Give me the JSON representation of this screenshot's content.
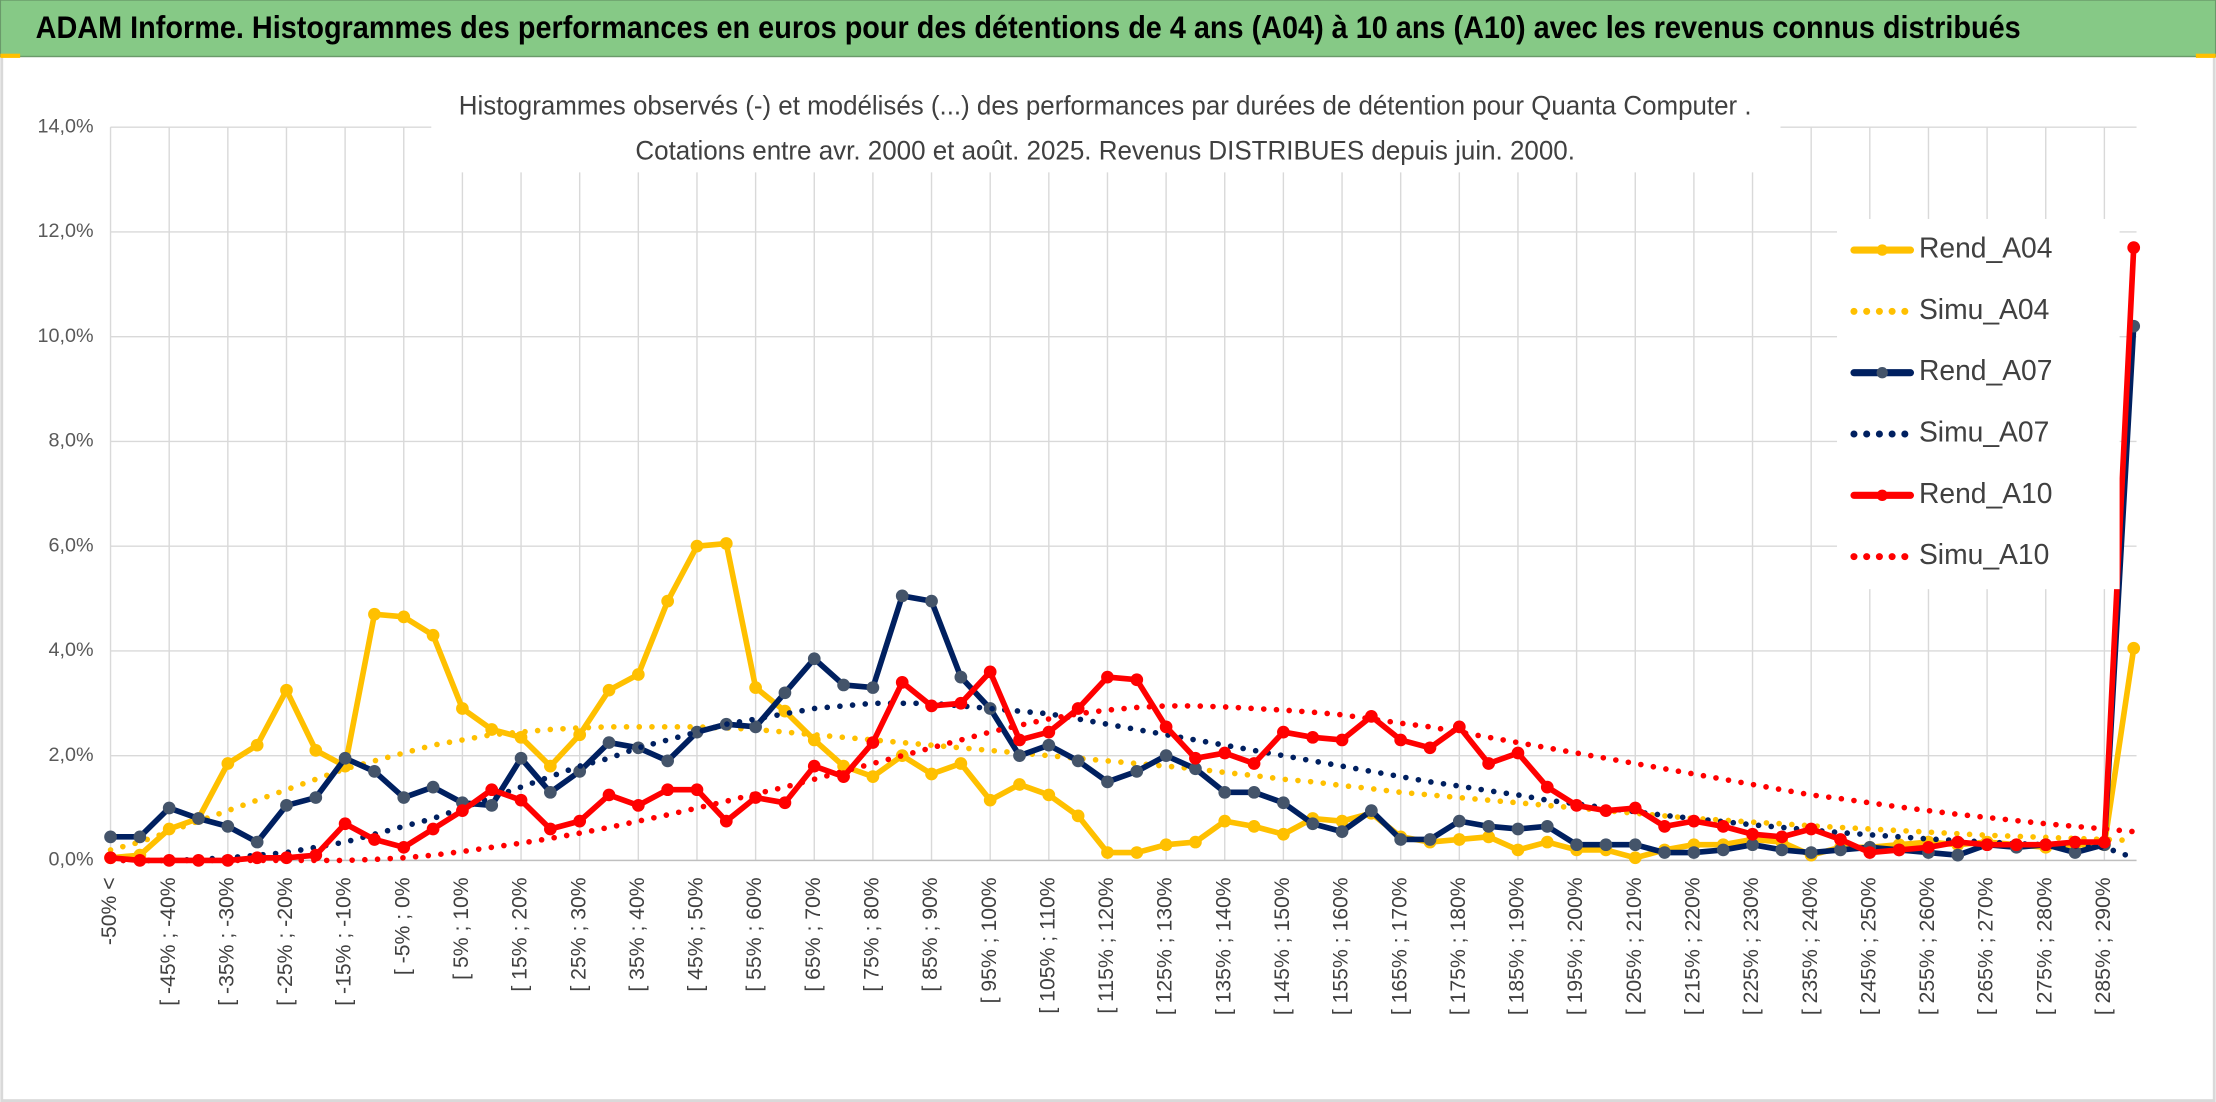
{
  "header": {
    "title": "ADAM Informe. Histogrammes des performances en euros pour des détentions de 4 ans (A04) à 10 ans (A10) avec les revenus connus distribués"
  },
  "chart_data": {
    "type": "line",
    "title": "Histogrammes observés (-) et modélisés (...) des performances par durées de détention pour Quanta Computer .",
    "subtitle": "Cotations entre avr. 2000 et août. 2025. Revenus DISTRIBUES depuis juin. 2000.",
    "categories": [
      "-50% <",
      null,
      "[ -45% ; -40%",
      null,
      "[ -35% ; -30%",
      null,
      "[ -25% ; -20%",
      null,
      "[ -15% ; -10%",
      null,
      "[ -5% ; 0%",
      null,
      "[ 5% ; 10%",
      null,
      "[ 15% ; 20%",
      null,
      "[ 25% ; 30%",
      null,
      "[ 35% ; 40%",
      null,
      "[ 45% ; 50%",
      null,
      "[ 55% ; 60%",
      null,
      "[ 65% ; 70%",
      null,
      "[ 75% ; 80%",
      null,
      "[ 85% ; 90%",
      null,
      "[ 95% ; 100%",
      null,
      "[ 105% ; 110%",
      null,
      "[ 115% ; 120%",
      null,
      "[ 125% ; 130%",
      null,
      "[ 135% ; 140%",
      null,
      "[ 145% ; 150%",
      null,
      "[ 155% ; 160%",
      null,
      "[ 165% ; 170%",
      null,
      "[ 175% ; 180%",
      null,
      "[ 185% ; 190%",
      null,
      "[ 195% ; 200%",
      null,
      "[ 205% ; 210%",
      null,
      "[ 215% ; 220%",
      null,
      "[ 225% ; 230%",
      null,
      "[ 235% ; 240%",
      null,
      "[ 245% ; 250%",
      null,
      "[ 255% ; 260%",
      null,
      "[ 265% ; 270%",
      null,
      "[ 275% ; 280%",
      null,
      "[ 285% ; 290%",
      null
    ],
    "series": [
      {
        "name": "Rend_A04",
        "color": "#FFC000",
        "line_style": "solid",
        "markers": true,
        "values": [
          0.05,
          0.1,
          0.6,
          0.8,
          1.85,
          2.2,
          3.25,
          2.1,
          1.8,
          4.7,
          4.65,
          4.3,
          2.9,
          2.5,
          2.35,
          1.8,
          2.4,
          3.25,
          3.55,
          4.95,
          6.0,
          6.05,
          3.3,
          2.85,
          2.3,
          1.8,
          1.6,
          2.0,
          1.65,
          1.85,
          1.15,
          1.45,
          1.25,
          0.85,
          0.15,
          0.15,
          0.3,
          0.35,
          0.75,
          0.65,
          0.5,
          0.8,
          0.75,
          0.9,
          0.45,
          0.35,
          0.4,
          0.45,
          0.2,
          0.35,
          0.2,
          0.2,
          0.05,
          0.2,
          0.3,
          0.3,
          0.4,
          0.35,
          0.1,
          0.25,
          0.25,
          0.3,
          0.35,
          0.3,
          0.35,
          0.3,
          0.25,
          0.3,
          0.3,
          4.05
        ]
      },
      {
        "name": "Simu_A04",
        "color": "#FFC000",
        "line_style": "dotted",
        "markers": false,
        "values": [
          0.2,
          0.35,
          0.55,
          0.75,
          0.95,
          1.15,
          1.35,
          1.55,
          1.75,
          1.9,
          2.05,
          2.2,
          2.3,
          2.4,
          2.45,
          2.5,
          2.53,
          2.55,
          2.55,
          2.55,
          2.55,
          2.53,
          2.5,
          2.45,
          2.4,
          2.35,
          2.3,
          2.25,
          2.2,
          2.15,
          2.1,
          2.05,
          2.0,
          1.95,
          1.9,
          1.85,
          1.8,
          1.75,
          1.68,
          1.62,
          1.55,
          1.5,
          1.43,
          1.37,
          1.3,
          1.25,
          1.2,
          1.15,
          1.1,
          1.05,
          1.0,
          0.95,
          0.9,
          0.85,
          0.8,
          0.77,
          0.73,
          0.7,
          0.66,
          0.63,
          0.6,
          0.57,
          0.54,
          0.51,
          0.48,
          0.46,
          0.44,
          0.42,
          0.4,
          0.38
        ]
      },
      {
        "name": "Rend_A07",
        "color": "#002060",
        "marker_color": "#44546A",
        "line_style": "solid",
        "markers": true,
        "values": [
          0.45,
          0.45,
          1.0,
          0.8,
          0.65,
          0.35,
          1.05,
          1.2,
          1.95,
          1.7,
          1.2,
          1.4,
          1.1,
          1.05,
          1.95,
          1.3,
          1.7,
          2.25,
          2.15,
          1.9,
          2.45,
          2.6,
          2.55,
          3.2,
          3.85,
          3.35,
          3.3,
          5.05,
          4.95,
          3.5,
          2.9,
          2.0,
          2.2,
          1.9,
          1.5,
          1.7,
          2.0,
          1.75,
          1.3,
          1.3,
          1.1,
          0.7,
          0.55,
          0.95,
          0.4,
          0.4,
          0.75,
          0.65,
          0.6,
          0.65,
          0.3,
          0.3,
          0.3,
          0.15,
          0.15,
          0.2,
          0.3,
          0.2,
          0.15,
          0.2,
          0.25,
          0.2,
          0.15,
          0.1,
          0.3,
          0.25,
          0.3,
          0.15,
          0.3,
          10.2
        ]
      },
      {
        "name": "Simu_A07",
        "color": "#002060",
        "line_style": "dotted",
        "markers": false,
        "values": [
          0,
          0,
          0,
          0.02,
          0.05,
          0.1,
          0.15,
          0.25,
          0.35,
          0.5,
          0.65,
          0.8,
          1.0,
          1.2,
          1.4,
          1.6,
          1.8,
          1.95,
          2.15,
          2.3,
          2.45,
          2.6,
          2.7,
          2.8,
          2.9,
          2.95,
          3.0,
          3.0,
          3.0,
          2.95,
          2.9,
          2.85,
          2.8,
          2.7,
          2.6,
          2.5,
          2.4,
          2.3,
          2.2,
          2.1,
          2.0,
          1.9,
          1.8,
          1.7,
          1.6,
          1.5,
          1.42,
          1.33,
          1.25,
          1.15,
          1.08,
          1.0,
          0.93,
          0.86,
          0.8,
          0.74,
          0.68,
          0.63,
          0.58,
          0.53,
          0.49,
          0.45,
          0.41,
          0.38,
          0.35,
          0.32,
          0.3,
          0.27,
          0.25,
          0.05
        ]
      },
      {
        "name": "Rend_A10",
        "color": "#FF0000",
        "line_style": "solid",
        "markers": true,
        "values": [
          0.05,
          0,
          0,
          0,
          0,
          0.05,
          0.05,
          0.1,
          0.7,
          0.4,
          0.25,
          0.6,
          0.95,
          1.35,
          1.15,
          0.6,
          0.75,
          1.25,
          1.05,
          1.35,
          1.35,
          0.75,
          1.2,
          1.1,
          1.8,
          1.6,
          2.25,
          3.4,
          2.95,
          3.0,
          3.6,
          2.3,
          2.45,
          2.9,
          3.5,
          3.45,
          2.55,
          1.95,
          2.05,
          1.85,
          2.45,
          2.35,
          2.3,
          2.75,
          2.3,
          2.15,
          2.55,
          1.85,
          2.05,
          1.4,
          1.05,
          0.95,
          1.0,
          0.65,
          0.75,
          0.65,
          0.5,
          0.45,
          0.6,
          0.4,
          0.15,
          0.2,
          0.25,
          0.35,
          0.3,
          0.3,
          0.3,
          0.35,
          0.35,
          11.7
        ]
      },
      {
        "name": "Simu_A10",
        "color": "#FF0000",
        "line_style": "dotted",
        "markers": false,
        "values": [
          0,
          0,
          0,
          0,
          0,
          0,
          0,
          0,
          0,
          0.02,
          0.05,
          0.1,
          0.17,
          0.25,
          0.33,
          0.42,
          0.52,
          0.63,
          0.75,
          0.87,
          1.0,
          1.13,
          1.27,
          1.4,
          1.55,
          1.7,
          1.85,
          2.0,
          2.15,
          2.3,
          2.45,
          2.58,
          2.7,
          2.8,
          2.87,
          2.92,
          2.95,
          2.95,
          2.93,
          2.9,
          2.87,
          2.83,
          2.78,
          2.7,
          2.62,
          2.55,
          2.45,
          2.35,
          2.25,
          2.15,
          2.05,
          1.95,
          1.85,
          1.75,
          1.65,
          1.55,
          1.45,
          1.35,
          1.25,
          1.18,
          1.1,
          1.02,
          0.95,
          0.88,
          0.82,
          0.76,
          0.7,
          0.65,
          0.6,
          0.55
        ]
      }
    ],
    "ylim": [
      0,
      14
    ],
    "yticks": [
      {
        "value": 0,
        "label": "0,0%"
      },
      {
        "value": 2,
        "label": "2,0%"
      },
      {
        "value": 4,
        "label": "4,0%"
      },
      {
        "value": 6,
        "label": "6,0%"
      },
      {
        "value": 8,
        "label": "8,0%"
      },
      {
        "value": 10,
        "label": "10,0%"
      },
      {
        "value": 12,
        "label": "12,0%"
      },
      {
        "value": 14,
        "label": "14,0%"
      }
    ],
    "grid": true,
    "legend": "right"
  }
}
